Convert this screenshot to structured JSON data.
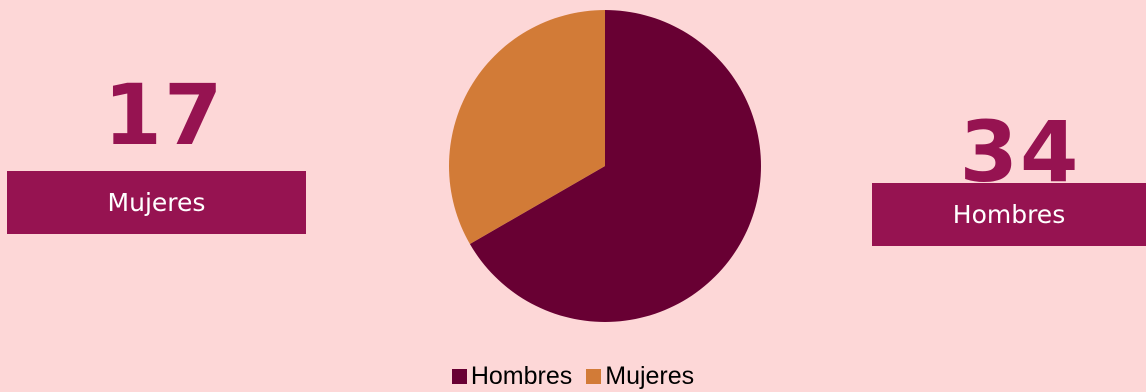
{
  "stats": {
    "left": {
      "number": "17",
      "label": "Mujeres"
    },
    "right": {
      "number": "34",
      "label": "Hombres"
    }
  },
  "colors": {
    "background": "#FDD7D7",
    "accent": "#961351"
  },
  "chart_data": {
    "type": "pie",
    "categories": [
      "Hombres",
      "Mujeres"
    ],
    "values": [
      34,
      17
    ],
    "colors": [
      "#680033",
      "#D27B37"
    ],
    "legend": "bottom"
  }
}
